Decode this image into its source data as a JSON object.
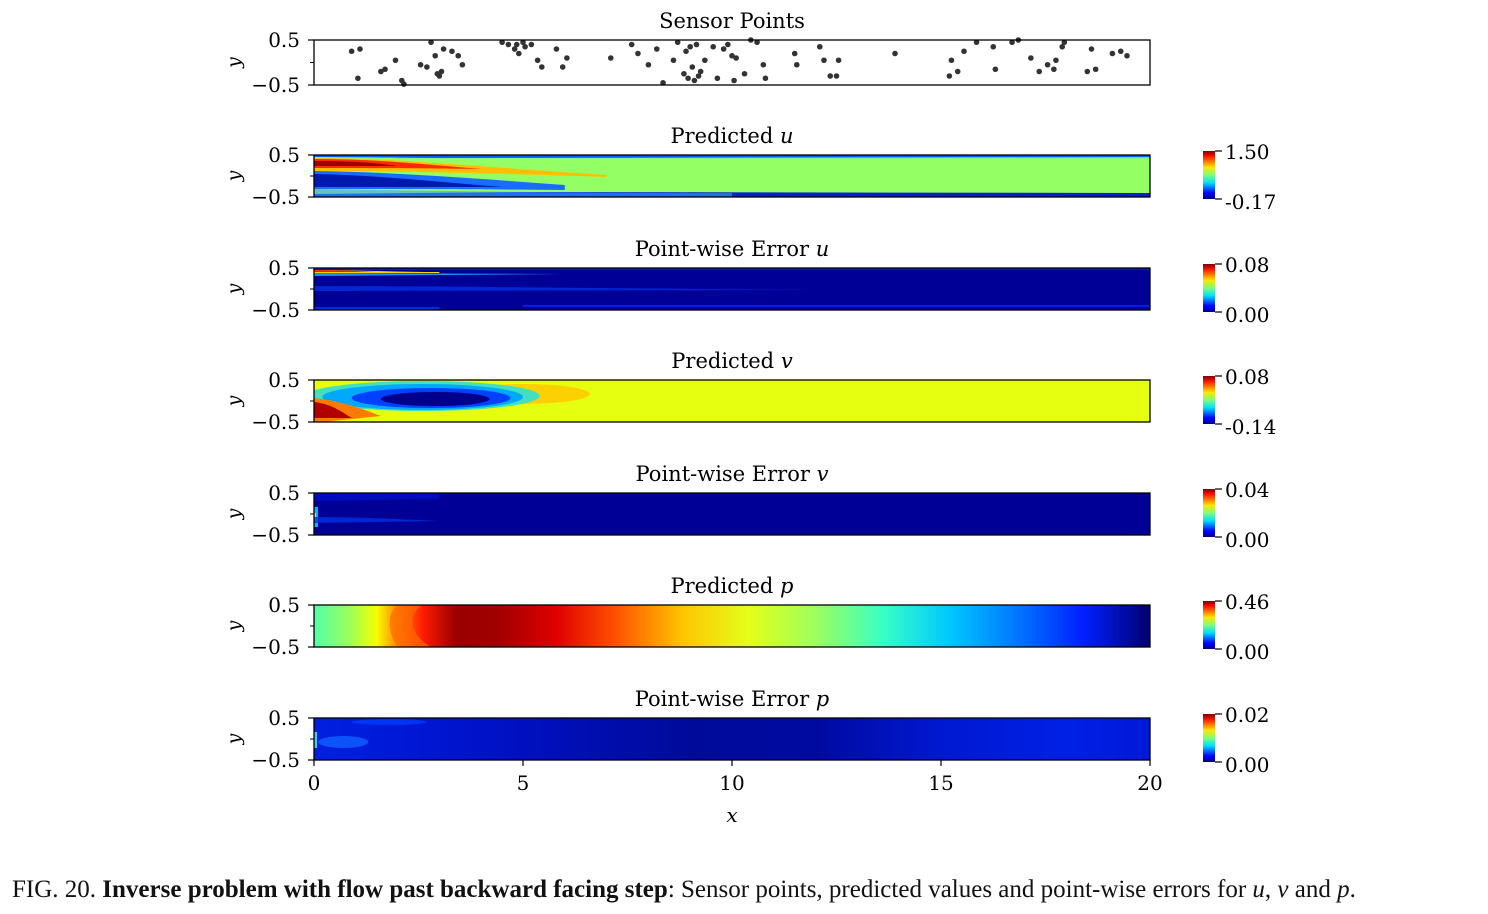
{
  "figure": {
    "caption": {
      "label": "FIG. 20.",
      "bold": "Inverse problem with flow past backward facing step",
      "rest_a": ": Sensor points, predicted values and point-wise errors for ",
      "var_u": "u",
      "sep1": ", ",
      "var_v": "v",
      "sep2": " and ",
      "var_p": "p",
      "end": "."
    }
  },
  "chart_data": [
    {
      "type": "scatter",
      "title": "Sensor Points",
      "ylabel": "y",
      "xlim": [
        0,
        20
      ],
      "ylim": [
        -0.5,
        0.5
      ],
      "yticks": [
        "0.5",
        "−0.5"
      ],
      "point_color": "#333333",
      "points": [
        [
          0.9,
          0.25
        ],
        [
          1.1,
          0.3
        ],
        [
          1.05,
          -0.35
        ],
        [
          1.6,
          -0.2
        ],
        [
          1.7,
          -0.15
        ],
        [
          1.95,
          0.05
        ],
        [
          2.1,
          -0.4
        ],
        [
          2.15,
          -0.48
        ],
        [
          2.55,
          -0.05
        ],
        [
          2.7,
          -0.1
        ],
        [
          2.8,
          0.45
        ],
        [
          2.9,
          0.15
        ],
        [
          2.95,
          -0.25
        ],
        [
          3.0,
          -0.3
        ],
        [
          3.05,
          -0.2
        ],
        [
          3.1,
          0.3
        ],
        [
          3.3,
          0.25
        ],
        [
          3.45,
          0.15
        ],
        [
          3.55,
          -0.05
        ],
        [
          4.5,
          0.45
        ],
        [
          4.65,
          0.4
        ],
        [
          4.8,
          0.3
        ],
        [
          4.85,
          0.4
        ],
        [
          4.9,
          0.2
        ],
        [
          5.0,
          0.45
        ],
        [
          5.05,
          0.35
        ],
        [
          5.2,
          0.4
        ],
        [
          5.35,
          0.05
        ],
        [
          5.45,
          -0.1
        ],
        [
          5.8,
          0.3
        ],
        [
          5.95,
          -0.1
        ],
        [
          6.05,
          0.1
        ],
        [
          7.1,
          0.1
        ],
        [
          7.6,
          0.4
        ],
        [
          7.75,
          0.2
        ],
        [
          8.0,
          -0.05
        ],
        [
          8.2,
          0.3
        ],
        [
          8.35,
          -0.45
        ],
        [
          8.6,
          0.05
        ],
        [
          8.7,
          0.45
        ],
        [
          8.85,
          -0.25
        ],
        [
          8.9,
          0.25
        ],
        [
          8.95,
          -0.35
        ],
        [
          9.0,
          0.35
        ],
        [
          9.05,
          -0.1
        ],
        [
          9.1,
          -0.4
        ],
        [
          9.15,
          0.4
        ],
        [
          9.2,
          -0.3
        ],
        [
          9.25,
          -0.2
        ],
        [
          9.35,
          0.05
        ],
        [
          9.55,
          0.35
        ],
        [
          9.65,
          -0.35
        ],
        [
          9.8,
          0.3
        ],
        [
          9.9,
          0.4
        ],
        [
          10.0,
          0.15
        ],
        [
          10.05,
          -0.4
        ],
        [
          10.1,
          0.1
        ],
        [
          10.3,
          -0.25
        ],
        [
          10.45,
          0.5
        ],
        [
          10.6,
          0.45
        ],
        [
          10.75,
          -0.05
        ],
        [
          10.8,
          -0.35
        ],
        [
          11.5,
          0.2
        ],
        [
          11.55,
          -0.05
        ],
        [
          12.1,
          0.35
        ],
        [
          12.2,
          0.05
        ],
        [
          12.35,
          -0.3
        ],
        [
          12.5,
          -0.3
        ],
        [
          12.55,
          0.05
        ],
        [
          13.9,
          0.2
        ],
        [
          15.2,
          -0.3
        ],
        [
          15.25,
          0.05
        ],
        [
          15.4,
          -0.2
        ],
        [
          15.55,
          0.25
        ],
        [
          15.85,
          0.45
        ],
        [
          16.25,
          0.35
        ],
        [
          16.3,
          -0.15
        ],
        [
          16.7,
          0.45
        ],
        [
          16.85,
          0.5
        ],
        [
          17.15,
          0.1
        ],
        [
          17.35,
          -0.2
        ],
        [
          17.55,
          -0.05
        ],
        [
          17.7,
          -0.15
        ],
        [
          17.75,
          0.05
        ],
        [
          17.9,
          0.35
        ],
        [
          17.95,
          0.45
        ],
        [
          18.5,
          -0.2
        ],
        [
          18.7,
          -0.15
        ],
        [
          18.6,
          0.3
        ],
        [
          19.1,
          0.2
        ],
        [
          19.3,
          0.25
        ],
        [
          19.45,
          0.15
        ]
      ]
    },
    {
      "type": "heatmap",
      "title_text": "Predicted ",
      "title_var": "u",
      "ylabel": "y",
      "xlim": [
        0,
        20
      ],
      "ylim": [
        -0.5,
        0.5
      ],
      "yticks": [
        "0.5",
        "−0.5"
      ],
      "field": "pred_u",
      "colormap": "jet",
      "vmin": -0.17,
      "vmax": 1.5,
      "cbar_max_label": "1.50",
      "cbar_min_label": "-0.17"
    },
    {
      "type": "heatmap",
      "title_text": "Point-wise Error ",
      "title_var": "u",
      "ylabel": "y",
      "xlim": [
        0,
        20
      ],
      "ylim": [
        -0.5,
        0.5
      ],
      "yticks": [
        "0.5",
        "−0.5"
      ],
      "field": "err_u",
      "colormap": "jet",
      "vmin": 0.0,
      "vmax": 0.08,
      "cbar_max_label": "0.08",
      "cbar_min_label": "0.00"
    },
    {
      "type": "heatmap",
      "title_text": "Predicted ",
      "title_var": "v",
      "ylabel": "y",
      "xlim": [
        0,
        20
      ],
      "ylim": [
        -0.5,
        0.5
      ],
      "yticks": [
        "0.5",
        "−0.5"
      ],
      "field": "pred_v",
      "colormap": "jet",
      "vmin": -0.14,
      "vmax": 0.08,
      "cbar_max_label": "0.08",
      "cbar_min_label": "-0.14"
    },
    {
      "type": "heatmap",
      "title_text": "Point-wise Error ",
      "title_var": "v",
      "ylabel": "y",
      "xlim": [
        0,
        20
      ],
      "ylim": [
        -0.5,
        0.5
      ],
      "yticks": [
        "0.5",
        "−0.5"
      ],
      "field": "err_v",
      "colormap": "jet",
      "vmin": 0.0,
      "vmax": 0.04,
      "cbar_max_label": "0.04",
      "cbar_min_label": "0.00"
    },
    {
      "type": "heatmap",
      "title_text": "Predicted ",
      "title_var": "p",
      "ylabel": "y",
      "xlim": [
        0,
        20
      ],
      "ylim": [
        -0.5,
        0.5
      ],
      "yticks": [
        "0.5",
        "−0.5"
      ],
      "field": "pred_p",
      "colormap": "jet",
      "vmin": 0.0,
      "vmax": 0.46,
      "cbar_max_label": "0.46",
      "cbar_min_label": "0.00"
    },
    {
      "type": "heatmap",
      "title_text": "Point-wise Error ",
      "title_var": "p",
      "ylabel": "y",
      "xlabel": "x",
      "xlim": [
        0,
        20
      ],
      "ylim": [
        -0.5,
        0.5
      ],
      "yticks": [
        "0.5",
        "−0.5"
      ],
      "xticks": [
        "0",
        "5",
        "10",
        "15",
        "20"
      ],
      "field": "err_p",
      "colormap": "jet",
      "vmin": 0.0,
      "vmax": 0.02,
      "cbar_max_label": "0.02",
      "cbar_min_label": "0.00"
    }
  ]
}
